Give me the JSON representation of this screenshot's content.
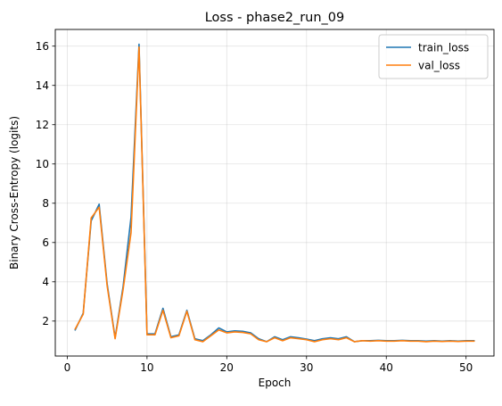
{
  "chart_data": {
    "type": "line",
    "title": "Loss - phase2_run_09",
    "xlabel": "Epoch",
    "ylabel": "Binary Cross-Entropy (logits)",
    "xlim": [
      -1.5,
      53.5
    ],
    "ylim": [
      0.22,
      16.85
    ],
    "xticks": [
      0,
      10,
      20,
      30,
      40,
      50
    ],
    "yticks": [
      2,
      4,
      6,
      8,
      10,
      12,
      14,
      16
    ],
    "grid": true,
    "legend_position": "top-right",
    "x": [
      1,
      2,
      3,
      4,
      5,
      6,
      7,
      8,
      9,
      10,
      11,
      12,
      13,
      14,
      15,
      16,
      17,
      18,
      19,
      20,
      21,
      22,
      23,
      24,
      25,
      26,
      27,
      28,
      29,
      30,
      31,
      32,
      33,
      34,
      35,
      36,
      37,
      38,
      39,
      40,
      41,
      42,
      43,
      44,
      45,
      46,
      47,
      48,
      49,
      50,
      51
    ],
    "series": [
      {
        "name": "train_loss",
        "color": "#1f77b4",
        "values": [
          1.55,
          2.4,
          7.1,
          7.95,
          3.9,
          1.15,
          3.75,
          7.3,
          16.1,
          1.35,
          1.35,
          2.65,
          1.2,
          1.3,
          2.55,
          1.1,
          1.0,
          1.3,
          1.65,
          1.45,
          1.5,
          1.48,
          1.4,
          1.1,
          0.95,
          1.2,
          1.05,
          1.2,
          1.15,
          1.08,
          1.0,
          1.1,
          1.15,
          1.1,
          1.2,
          0.95,
          1.0,
          1.0,
          1.02,
          1.0,
          1.0,
          1.02,
          1.0,
          1.0,
          0.98,
          1.0,
          0.98,
          1.0,
          0.98,
          1.0,
          1.0
        ]
      },
      {
        "name": "val_loss",
        "color": "#ff7f0e",
        "values": [
          1.6,
          2.35,
          7.25,
          7.8,
          3.8,
          1.1,
          3.6,
          6.5,
          15.95,
          1.3,
          1.3,
          2.55,
          1.15,
          1.25,
          2.5,
          1.05,
          0.95,
          1.25,
          1.55,
          1.4,
          1.45,
          1.42,
          1.35,
          1.05,
          0.95,
          1.15,
          1.0,
          1.15,
          1.1,
          1.05,
          0.95,
          1.05,
          1.1,
          1.05,
          1.15,
          0.95,
          1.0,
          0.98,
          1.0,
          0.98,
          0.98,
          1.0,
          0.98,
          0.98,
          0.95,
          0.98,
          0.96,
          0.98,
          0.96,
          0.98,
          0.98
        ]
      }
    ]
  }
}
